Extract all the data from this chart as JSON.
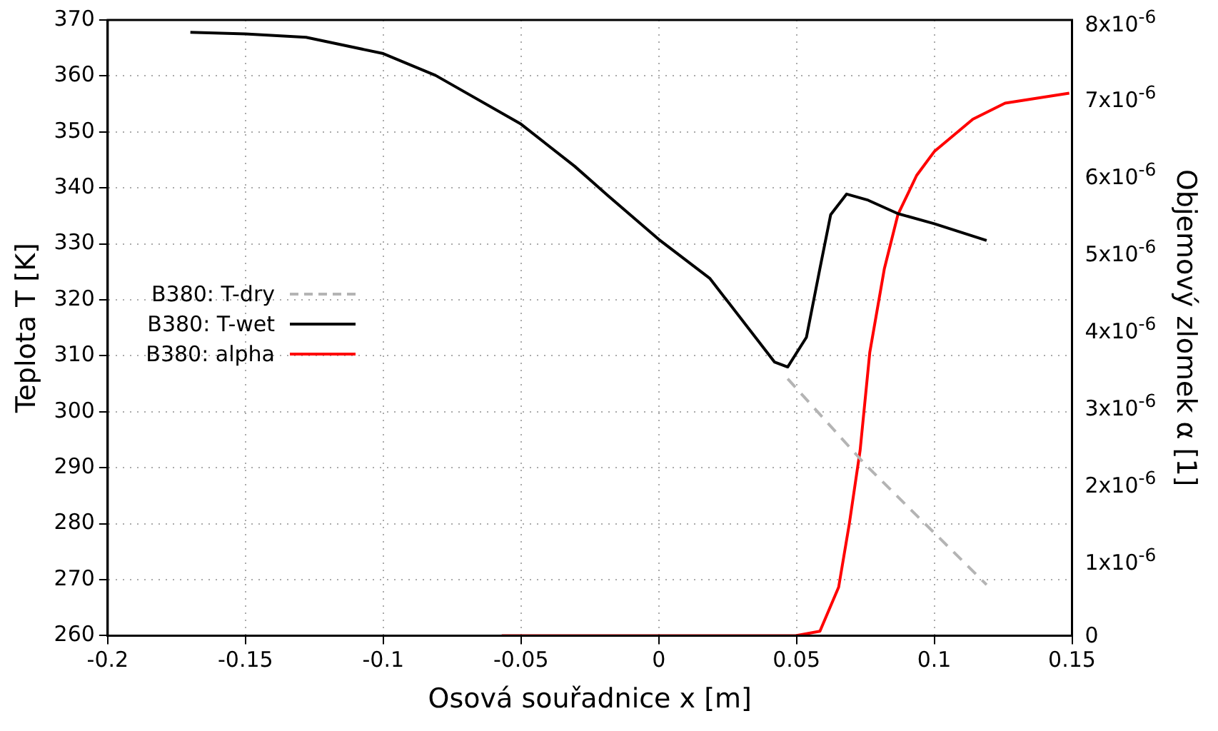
{
  "chart_data": {
    "type": "line",
    "xlabel": "Osová souřadnice x [m]",
    "ylabel": "Teplota T [K]",
    "y2label": "Objemový zlomek α [1]",
    "xlim": [
      -0.2,
      0.15
    ],
    "xticks": [
      -0.2,
      -0.15,
      -0.1,
      -0.05,
      0,
      0.05,
      0.1,
      0.15
    ],
    "ylim": [
      260,
      370
    ],
    "yticks": [
      260,
      270,
      280,
      290,
      300,
      310,
      320,
      330,
      340,
      350,
      360,
      370
    ],
    "y2lim": [
      0,
      8e-06
    ],
    "y2ticks": [
      0,
      {
        "value": 1e-06,
        "label": "1x10$^{-6}$"
      },
      {
        "value": 2e-06,
        "label": "2x10$^{-6}$"
      },
      {
        "value": 3e-06,
        "label": "3x10$^{-6}$"
      },
      {
        "value": 4e-06,
        "label": "4x10$^{-6}$"
      },
      {
        "value": 5e-06,
        "label": "5x10$^{-6}$"
      },
      {
        "value": 6e-06,
        "label": "6x10$^{-6}$"
      },
      {
        "value": 7e-06,
        "label": "7x10$^{-6}$"
      },
      {
        "value": 8e-06,
        "label": "8x10$^{-6}$"
      }
    ],
    "grid": true,
    "legend": "left",
    "marker": "none",
    "series": [
      {
        "name": "B380: T-dry",
        "color": "#b4b4b4",
        "line_style": "dashed",
        "x": [
          0.0468,
          0.0751,
          0.119
        ],
        "values": [
          305.9,
          290.5,
          269.1
        ]
      },
      {
        "name": "B380: T-wet",
        "color": "#000000",
        "line_style": "solid",
        "x": [
          -0.17,
          -0.15,
          -0.128,
          -0.1,
          -0.081,
          -0.05,
          -0.0306,
          -0.0186,
          0,
          0.0186,
          0.042,
          0.0468,
          0.0536,
          0.0585,
          0.0624,
          0.0682,
          0.076,
          0.0868,
          0.1,
          0.119
        ],
        "values": [
          367.8,
          367.5,
          366.9,
          364.0,
          360.1,
          351.4,
          343.9,
          338.7,
          330.8,
          323.8,
          308.9,
          308.0,
          313.3,
          325.6,
          335.2,
          338.9,
          337.8,
          335.4,
          333.6,
          330.6
        ]
      },
      {
        "name": "B380: alpha",
        "color": "#ff0000",
        "line_style": "solid",
        "axis": "y2",
        "x": [
          -0.057,
          0,
          0.0497,
          0.0585,
          0.0653,
          0.0692,
          0.0731,
          0.0766,
          0.0819,
          0.0868,
          0.0936,
          0.1,
          0.114,
          0.1257,
          0.149
        ],
        "values": [
          0,
          0,
          0,
          5.7e-08,
          6.3e-07,
          1.46e-06,
          2.41e-06,
          3.68e-06,
          4.77e-06,
          5.47e-06,
          5.98e-06,
          6.29e-06,
          6.71e-06,
          6.92e-06,
          7.05e-06
        ]
      }
    ]
  }
}
